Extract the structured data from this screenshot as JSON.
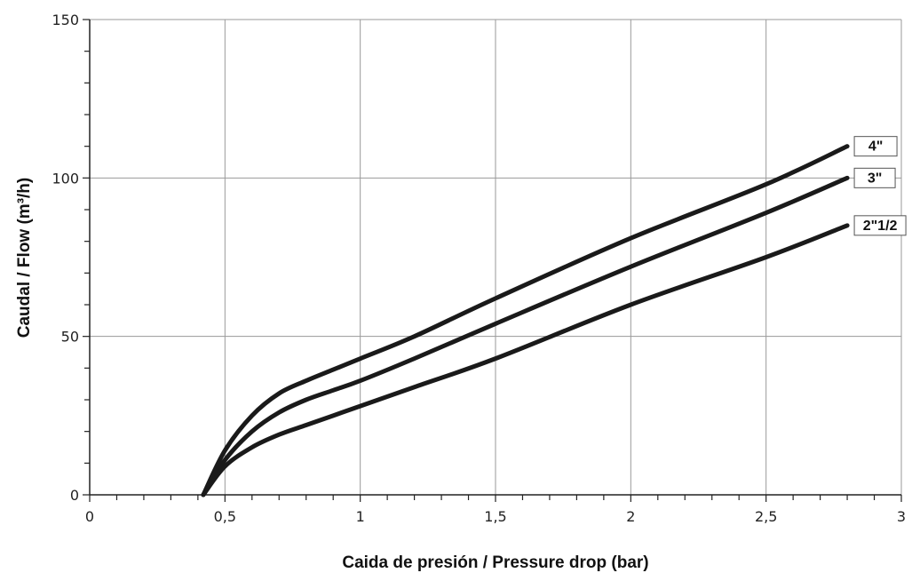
{
  "chart_data": {
    "type": "line",
    "title": "",
    "xlabel": "Caida de presión / Pressure drop (bar)",
    "ylabel": "Caudal / Flow (m³/h)",
    "xlim": [
      0,
      3
    ],
    "ylim": [
      0,
      150
    ],
    "x_tick_labels": [
      "0",
      "0,5",
      "1",
      "1,5",
      "2",
      "2,5",
      "3"
    ],
    "x_tick_values": [
      0,
      0.5,
      1,
      1.5,
      2,
      2.5,
      3
    ],
    "y_tick_labels": [
      "0",
      "50",
      "100",
      "150"
    ],
    "y_tick_values": [
      0,
      50,
      100,
      150
    ],
    "x_minor_step": 0.1,
    "y_minor_step": 10,
    "grid": true,
    "colors": {
      "line": "#1a1a1a",
      "grid": "#9a9a9a",
      "axis": "#222222"
    },
    "series": [
      {
        "name": "4\"",
        "x": [
          0.42,
          0.5,
          0.6,
          0.7,
          0.8,
          0.9,
          1.0,
          1.2,
          1.5,
          2.0,
          2.5,
          2.8
        ],
        "y": [
          0,
          14,
          25,
          32,
          36,
          39.5,
          43,
          50,
          62,
          81,
          98,
          110
        ]
      },
      {
        "name": "3\"",
        "x": [
          0.42,
          0.5,
          0.6,
          0.7,
          0.8,
          0.9,
          1.0,
          1.2,
          1.5,
          2.0,
          2.5,
          2.8
        ],
        "y": [
          0,
          11,
          20,
          26,
          30,
          33,
          36,
          43,
          54,
          72,
          89,
          100
        ]
      },
      {
        "name": "2\"1/2",
        "x": [
          0.42,
          0.5,
          0.6,
          0.7,
          0.8,
          0.9,
          1.0,
          1.2,
          1.5,
          2.0,
          2.5,
          2.8
        ],
        "y": [
          0,
          9,
          15,
          19,
          22,
          25,
          28,
          34,
          43,
          60,
          75,
          85
        ]
      }
    ]
  }
}
